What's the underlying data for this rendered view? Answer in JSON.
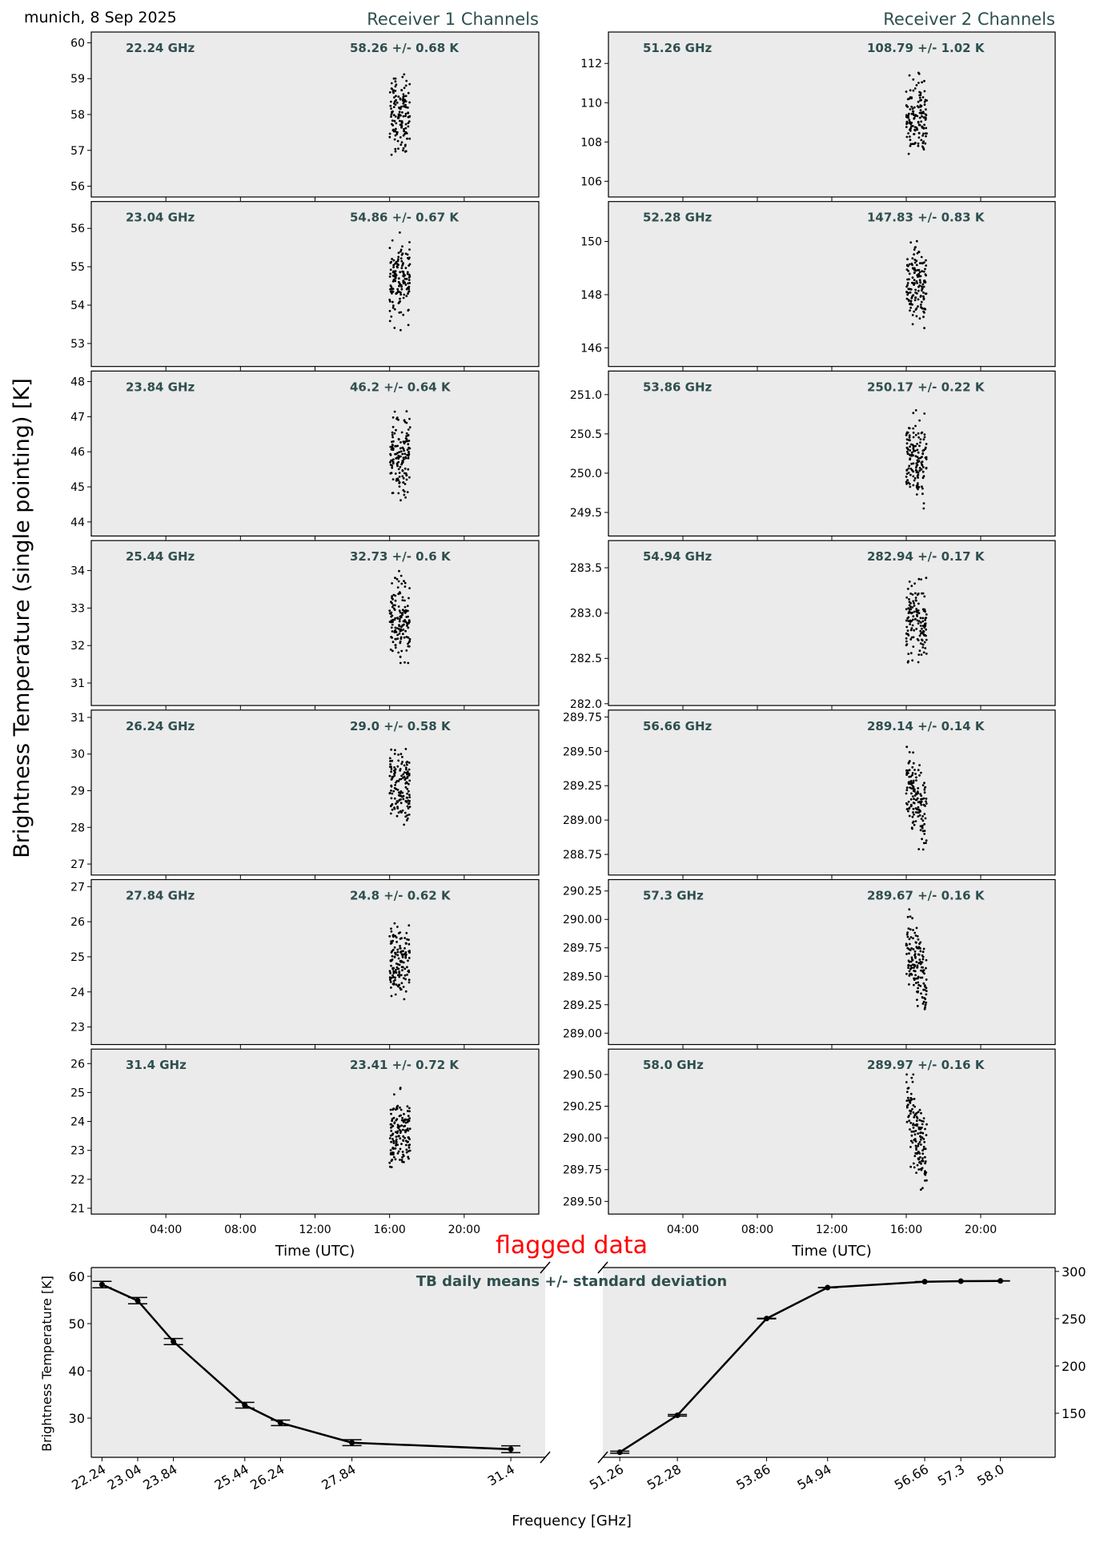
{
  "header": {
    "location_date": "munich, 8 Sep 2025",
    "receiver1_title": "Receiver 1 Channels",
    "receiver2_title": "Receiver 2 Channels",
    "ylabel": "Brightness Temperature (single pointing) [K]",
    "flagged_label": "flagged data"
  },
  "colors": {
    "panel_bg": "#ebebeb",
    "label": "#2f4f4f",
    "flag": "#ff0000",
    "marks": "#000000"
  },
  "chart_data": [
    {
      "type": "scatter",
      "title": "Receiver 1 Channels",
      "xlabel": "Time (UTC)",
      "xlim_hours": [
        0,
        24
      ],
      "xticks_hours": [
        4,
        8,
        12,
        16,
        20
      ],
      "xtick_labels": [
        "04:00",
        "08:00",
        "12:00",
        "16:00",
        "20:00"
      ],
      "data_time_window_hours": [
        16.0,
        17.1
      ],
      "channels": [
        {
          "freq": "22.24 GHz",
          "stats": "58.26 +/- 0.68 K",
          "ylim": [
            55.7,
            60.3
          ],
          "yticks": [
            56,
            57,
            58,
            59,
            60
          ],
          "ytick_labels": [
            "56",
            "57",
            "58",
            "59",
            "60"
          ],
          "range": [
            56.5,
            59.5
          ],
          "trend": 0
        },
        {
          "freq": "23.04 GHz",
          "stats": "54.86 +/- 0.67 K",
          "ylim": [
            52.4,
            56.7
          ],
          "yticks": [
            53,
            54,
            55,
            56
          ],
          "ytick_labels": [
            "53",
            "54",
            "55",
            "56"
          ],
          "range": [
            53.1,
            56.2
          ],
          "trend": 0
        },
        {
          "freq": "23.84 GHz",
          "stats": "46.2 +/- 0.64 K",
          "ylim": [
            43.6,
            48.3
          ],
          "yticks": [
            44,
            45,
            46,
            47,
            48
          ],
          "ytick_labels": [
            "44",
            "45",
            "46",
            "47",
            "48"
          ],
          "range": [
            44.4,
            47.5
          ],
          "trend": 0
        },
        {
          "freq": "25.44 GHz",
          "stats": "32.73 +/- 0.6 K",
          "ylim": [
            30.4,
            34.8
          ],
          "yticks": [
            31,
            32,
            33,
            34
          ],
          "ytick_labels": [
            "31",
            "32",
            "33",
            "34"
          ],
          "range": [
            31.1,
            34.2
          ],
          "trend": 0
        },
        {
          "freq": "26.24 GHz",
          "stats": "29.0 +/- 0.58 K",
          "ylim": [
            26.7,
            31.2
          ],
          "yticks": [
            27,
            28,
            29,
            30,
            31
          ],
          "ytick_labels": [
            "27",
            "28",
            "29",
            "30",
            "31"
          ],
          "range": [
            27.5,
            30.5
          ],
          "trend": 0
        },
        {
          "freq": "27.84 GHz",
          "stats": "24.8 +/- 0.62 K",
          "ylim": [
            22.5,
            27.2
          ],
          "yticks": [
            23,
            24,
            25,
            26,
            27
          ],
          "ytick_labels": [
            "23",
            "24",
            "25",
            "26",
            "27"
          ],
          "range": [
            23.3,
            26.4
          ],
          "trend": 0
        },
        {
          "freq": "31.4 GHz",
          "stats": "23.41 +/- 0.72 K",
          "ylim": [
            20.8,
            26.5
          ],
          "yticks": [
            21,
            22,
            23,
            24,
            25,
            26
          ],
          "ytick_labels": [
            "21",
            "22",
            "23",
            "24",
            "25",
            "26"
          ],
          "range": [
            21.8,
            25.4
          ],
          "trend": 0
        }
      ]
    },
    {
      "type": "scatter",
      "title": "Receiver 2 Channels",
      "xlabel": "Time (UTC)",
      "xlim_hours": [
        0,
        24
      ],
      "xticks_hours": [
        4,
        8,
        12,
        16,
        20
      ],
      "xtick_labels": [
        "04:00",
        "08:00",
        "12:00",
        "16:00",
        "20:00"
      ],
      "data_time_window_hours": [
        16.0,
        17.1
      ],
      "channels": [
        {
          "freq": "51.26 GHz",
          "stats": "108.79 +/- 1.02 K",
          "ylim": [
            105.2,
            113.6
          ],
          "yticks": [
            106,
            108,
            110,
            112
          ],
          "ytick_labels": [
            "106",
            "108",
            "110",
            "112"
          ],
          "range": [
            106.6,
            112.2
          ],
          "trend": 0
        },
        {
          "freq": "52.28 GHz",
          "stats": "147.83 +/- 0.83 K",
          "ylim": [
            145.3,
            151.5
          ],
          "yticks": [
            146,
            148,
            150
          ],
          "ytick_labels": [
            "146",
            "148",
            "150"
          ],
          "range": [
            146.1,
            150.6
          ],
          "trend": 0
        },
        {
          "freq": "53.86 GHz",
          "stats": "250.17 +/- 0.22 K",
          "ylim": [
            249.2,
            251.3
          ],
          "yticks": [
            249.5,
            250.0,
            250.5,
            251.0
          ],
          "ytick_labels": [
            "249.5",
            "250.0",
            "250.5",
            "251.0"
          ],
          "range": [
            249.45,
            250.95
          ],
          "trend": 0
        },
        {
          "freq": "54.94 GHz",
          "stats": "282.94 +/- 0.17 K",
          "ylim": [
            281.98,
            283.8
          ],
          "yticks": [
            282.0,
            282.5,
            283.0,
            283.5
          ],
          "ytick_labels": [
            "282.0",
            "282.5",
            "283.0",
            "283.5"
          ],
          "range": [
            282.3,
            283.5
          ],
          "trend": 0
        },
        {
          "freq": "56.66 GHz",
          "stats": "289.14 +/- 0.14 K",
          "ylim": [
            288.6,
            289.8
          ],
          "yticks": [
            288.75,
            289.0,
            289.25,
            289.5,
            289.75
          ],
          "ytick_labels": [
            "288.75",
            "289.00",
            "289.25",
            "289.50",
            "289.75"
          ],
          "range": [
            288.77,
            289.55
          ],
          "trend": -0.35
        },
        {
          "freq": "57.3 GHz",
          "stats": "289.67 +/- 0.16 K",
          "ylim": [
            288.9,
            290.35
          ],
          "yticks": [
            289.0,
            289.25,
            289.5,
            289.75,
            290.0,
            290.25
          ],
          "ytick_labels": [
            "289.00",
            "289.25",
            "289.50",
            "289.75",
            "290.00",
            "290.25"
          ],
          "range": [
            289.15,
            290.1
          ],
          "trend": -0.4
        },
        {
          "freq": "58.0 GHz",
          "stats": "289.97 +/- 0.16 K",
          "ylim": [
            289.4,
            290.7
          ],
          "yticks": [
            289.5,
            289.75,
            290.0,
            290.25,
            290.5
          ],
          "ytick_labels": [
            "289.50",
            "289.75",
            "290.00",
            "290.25",
            "290.50"
          ],
          "range": [
            289.55,
            290.5
          ],
          "trend": -0.45
        }
      ]
    },
    {
      "type": "line",
      "title": "TB daily means +/- standard deviation",
      "xlabel": "Frequency [GHz]",
      "ylabel": "Brightness Temperature [K]",
      "left": {
        "x": [
          22.24,
          23.04,
          23.84,
          25.44,
          26.24,
          27.84,
          31.4
        ],
        "xtick_labels": [
          "22.24",
          "23.04",
          "23.84",
          "25.44",
          "26.24",
          "27.84",
          "31.4"
        ],
        "y": [
          58.26,
          54.86,
          46.2,
          32.73,
          29.0,
          24.8,
          23.41
        ],
        "err": [
          0.68,
          0.67,
          0.64,
          0.6,
          0.58,
          0.62,
          0.72
        ],
        "xlim": [
          22.0,
          32.17
        ],
        "ylim": [
          21.7,
          61.86
        ],
        "yticks": [
          30,
          40,
          50,
          60
        ],
        "ytick_labels": [
          "30",
          "40",
          "50",
          "60"
        ]
      },
      "right": {
        "x": [
          51.26,
          52.28,
          53.86,
          54.94,
          56.66,
          57.3,
          58.0
        ],
        "xtick_labels": [
          "51.26",
          "52.28",
          "53.86",
          "54.94",
          "56.66",
          "57.3",
          "58.0"
        ],
        "y": [
          108.79,
          147.83,
          250.17,
          282.94,
          289.14,
          289.67,
          289.97
        ],
        "err": [
          1.02,
          0.83,
          0.22,
          0.17,
          0.14,
          0.16,
          0.16
        ],
        "xlim": [
          50.96,
          58.97
        ],
        "ylim": [
          103.4,
          304.1
        ],
        "yticks": [
          150,
          200,
          250,
          300
        ],
        "ytick_labels": [
          "150",
          "200",
          "250",
          "300"
        ]
      }
    }
  ]
}
